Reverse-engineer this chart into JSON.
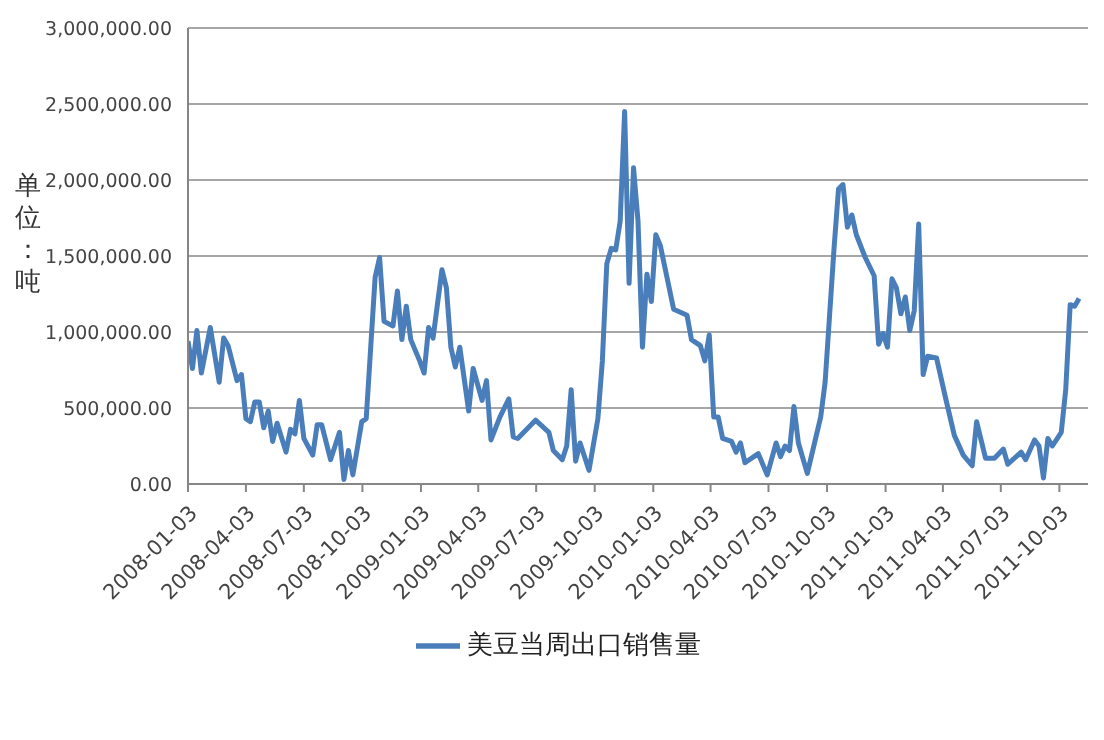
{
  "chart_data": {
    "type": "line",
    "ylabel": "单位：吨",
    "legend": "bottom",
    "grid": "y",
    "marker": "none",
    "line_style": "solid",
    "xlim": [
      "2008-01-03",
      "2011-11-17"
    ],
    "xticks": [
      "2008-01-03",
      "2008-04-03",
      "2008-07-03",
      "2008-10-03",
      "2009-01-03",
      "2009-04-03",
      "2009-07-03",
      "2009-10-03",
      "2010-01-03",
      "2010-04-03",
      "2010-07-03",
      "2010-10-03",
      "2011-01-03",
      "2011-04-03",
      "2011-07-03",
      "2011-10-03"
    ],
    "ylim": [
      0,
      3000000
    ],
    "yticks": [
      {
        "value": 0,
        "label": "0.00"
      },
      {
        "value": 500000,
        "label": "500,000.00"
      },
      {
        "value": 1000000,
        "label": "1,000,000.00"
      },
      {
        "value": 1500000,
        "label": "1,500,000.00"
      },
      {
        "value": 2000000,
        "label": "2,000,000.00"
      },
      {
        "value": 2500000,
        "label": "2,500,000.00"
      },
      {
        "value": 3000000,
        "label": "3,000,000.00"
      }
    ],
    "x": [
      "2008-01-03",
      "2008-01-10",
      "2008-01-17",
      "2008-01-24",
      "2008-02-07",
      "2008-02-21",
      "2008-02-28",
      "2008-03-06",
      "2008-03-20",
      "2008-03-27",
      "2008-04-03",
      "2008-04-10",
      "2008-04-17",
      "2008-04-24",
      "2008-05-01",
      "2008-05-08",
      "2008-05-15",
      "2008-05-22",
      "2008-06-05",
      "2008-06-12",
      "2008-06-19",
      "2008-06-26",
      "2008-07-03",
      "2008-07-17",
      "2008-07-24",
      "2008-07-31",
      "2008-08-14",
      "2008-08-28",
      "2008-09-04",
      "2008-09-11",
      "2008-09-18",
      "2008-10-02",
      "2008-10-09",
      "2008-10-23",
      "2008-10-30",
      "2008-11-06",
      "2008-11-20",
      "2008-11-27",
      "2008-12-04",
      "2008-12-11",
      "2008-12-18",
      "2009-01-01",
      "2009-01-08",
      "2009-01-15",
      "2009-01-22",
      "2009-02-05",
      "2009-02-12",
      "2009-02-19",
      "2009-02-26",
      "2009-03-05",
      "2009-03-19",
      "2009-03-26",
      "2009-04-09",
      "2009-04-16",
      "2009-04-23",
      "2009-05-07",
      "2009-05-21",
      "2009-05-28",
      "2009-06-04",
      "2009-07-02",
      "2009-07-23",
      "2009-07-30",
      "2009-08-13",
      "2009-08-20",
      "2009-08-27",
      "2009-09-03",
      "2009-09-10",
      "2009-09-24",
      "2009-10-08",
      "2009-10-15",
      "2009-10-22",
      "2009-10-29",
      "2009-11-05",
      "2009-11-12",
      "2009-11-19",
      "2009-11-26",
      "2009-12-03",
      "2009-12-10",
      "2009-12-17",
      "2009-12-24",
      "2009-12-31",
      "2010-01-07",
      "2010-01-14",
      "2010-02-04",
      "2010-02-25",
      "2010-03-04",
      "2010-03-18",
      "2010-03-25",
      "2010-04-01",
      "2010-04-08",
      "2010-04-15",
      "2010-04-22",
      "2010-05-06",
      "2010-05-13",
      "2010-05-20",
      "2010-05-27",
      "2010-06-17",
      "2010-07-01",
      "2010-07-15",
      "2010-07-22",
      "2010-07-29",
      "2010-08-05",
      "2010-08-12",
      "2010-08-19",
      "2010-09-02",
      "2010-09-23",
      "2010-09-30",
      "2010-10-14",
      "2010-10-21",
      "2010-10-28",
      "2010-11-04",
      "2010-11-11",
      "2010-11-18",
      "2010-12-02",
      "2010-12-16",
      "2010-12-23",
      "2010-12-30",
      "2011-01-06",
      "2011-01-13",
      "2011-01-20",
      "2011-01-27",
      "2011-02-03",
      "2011-02-10",
      "2011-02-17",
      "2011-02-24",
      "2011-03-03",
      "2011-03-10",
      "2011-03-24",
      "2011-04-07",
      "2011-04-21",
      "2011-05-05",
      "2011-05-19",
      "2011-05-26",
      "2011-06-09",
      "2011-06-23",
      "2011-07-07",
      "2011-07-14",
      "2011-08-04",
      "2011-08-11",
      "2011-08-25",
      "2011-09-01",
      "2011-09-08",
      "2011-09-15",
      "2011-09-22",
      "2011-10-06",
      "2011-10-13",
      "2011-10-20",
      "2011-10-27",
      "2011-11-03"
    ],
    "series": [
      {
        "name": "美豆当周出口销售量",
        "color": "#4a7ebb",
        "values": [
          940000,
          760000,
          1010000,
          730000,
          1030000,
          670000,
          960000,
          910000,
          680000,
          720000,
          430000,
          410000,
          540000,
          540000,
          370000,
          480000,
          280000,
          400000,
          210000,
          360000,
          330000,
          550000,
          300000,
          190000,
          390000,
          390000,
          160000,
          340000,
          30000,
          220000,
          60000,
          410000,
          430000,
          1360000,
          1490000,
          1070000,
          1040000,
          1270000,
          950000,
          1170000,
          950000,
          810000,
          730000,
          1030000,
          960000,
          1410000,
          1290000,
          900000,
          770000,
          900000,
          480000,
          760000,
          550000,
          680000,
          290000,
          440000,
          560000,
          310000,
          300000,
          420000,
          340000,
          220000,
          160000,
          250000,
          620000,
          150000,
          270000,
          90000,
          430000,
          810000,
          1450000,
          1550000,
          1540000,
          1730000,
          2450000,
          1320000,
          2080000,
          1730000,
          900000,
          1380000,
          1200000,
          1640000,
          1570000,
          1150000,
          1110000,
          950000,
          910000,
          810000,
          980000,
          440000,
          440000,
          300000,
          280000,
          210000,
          270000,
          140000,
          200000,
          60000,
          270000,
          180000,
          250000,
          220000,
          510000,
          270000,
          70000,
          440000,
          670000,
          1550000,
          1940000,
          1970000,
          1690000,
          1770000,
          1640000,
          1490000,
          1370000,
          920000,
          990000,
          900000,
          1350000,
          1290000,
          1120000,
          1230000,
          1010000,
          1140000,
          1710000,
          720000,
          840000,
          830000,
          570000,
          320000,
          190000,
          120000,
          410000,
          170000,
          170000,
          230000,
          130000,
          210000,
          160000,
          290000,
          250000,
          40000,
          300000,
          250000,
          340000,
          620000,
          1180000,
          1170000,
          1220000
        ]
      }
    ]
  }
}
